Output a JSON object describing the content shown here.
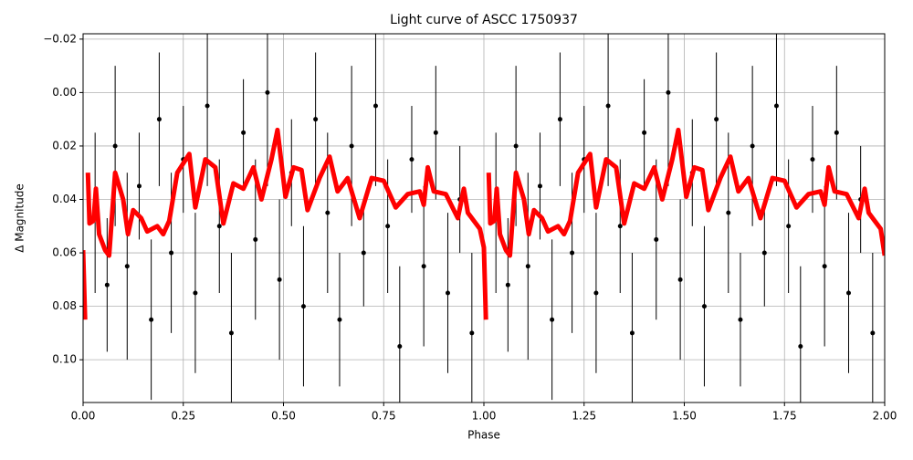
{
  "chart_data": {
    "type": "errorbar-line",
    "title": "Light curve of ASCC 1750937",
    "x_label": "Phase",
    "y_label": "Δ Magnitude",
    "xlim": [
      0,
      2
    ],
    "ylim": [
      0.116,
      -0.022
    ],
    "grid": true,
    "xticks": [
      {
        "value": 0,
        "label": "0.00"
      },
      {
        "value": 0.25,
        "label": "0.25"
      },
      {
        "value": 0.5,
        "label": "0.50"
      },
      {
        "value": 0.75,
        "label": "0.75"
      },
      {
        "value": 1,
        "label": "1.00"
      },
      {
        "value": 1.25,
        "label": "1.25"
      },
      {
        "value": 1.5,
        "label": "1.50"
      },
      {
        "value": 1.75,
        "label": "1.75"
      },
      {
        "value": 2,
        "label": "2.00"
      }
    ],
    "yticks": [
      {
        "value": -0.02,
        "label": "−0.02"
      },
      {
        "value": 0,
        "label": "0.00"
      },
      {
        "value": 0.02,
        "label": "0.02"
      },
      {
        "value": 0.04,
        "label": "0.04"
      },
      {
        "value": 0.06,
        "label": "0.06"
      },
      {
        "value": 0.08,
        "label": "0.08"
      },
      {
        "value": 0.1,
        "label": "0.10"
      }
    ],
    "points": {
      "color": "#000000",
      "x": [
        0.03,
        0.06,
        0.08,
        0.11,
        0.14,
        0.17,
        0.19,
        0.22,
        0.25,
        0.28,
        0.31,
        0.34,
        0.37,
        0.4,
        0.43,
        0.46,
        0.49,
        0.52,
        0.55,
        0.58,
        0.61,
        0.64,
        0.67,
        0.7,
        0.73,
        0.76,
        0.79,
        0.82,
        0.85,
        0.88,
        0.91,
        0.94,
        0.97,
        1.03,
        1.06,
        1.08,
        1.11,
        1.14,
        1.17,
        1.19,
        1.22,
        1.25,
        1.28,
        1.31,
        1.34,
        1.37,
        1.4,
        1.43,
        1.46,
        1.49,
        1.52,
        1.55,
        1.58,
        1.61,
        1.64,
        1.67,
        1.7,
        1.73,
        1.76,
        1.79,
        1.82,
        1.85,
        1.88,
        1.91,
        1.94,
        1.97
      ],
      "values": [
        0.045,
        0.072,
        0.02,
        0.065,
        0.035,
        0.085,
        0.01,
        0.06,
        0.025,
        0.075,
        0.005,
        0.05,
        0.09,
        0.015,
        0.055,
        0.0,
        0.07,
        0.03,
        0.08,
        0.01,
        0.045,
        0.085,
        0.02,
        0.06,
        0.005,
        0.05,
        0.095,
        0.025,
        0.065,
        0.015,
        0.075,
        0.04,
        0.09,
        0.045,
        0.072,
        0.02,
        0.065,
        0.035,
        0.085,
        0.01,
        0.06,
        0.025,
        0.075,
        0.005,
        0.05,
        0.09,
        0.015,
        0.055,
        0.0,
        0.07,
        0.03,
        0.08,
        0.01,
        0.045,
        0.085,
        0.02,
        0.06,
        0.005,
        0.05,
        0.095,
        0.025,
        0.065,
        0.015,
        0.075,
        0.04,
        0.09
      ],
      "errors": [
        0.03,
        0.025,
        0.03,
        0.035,
        0.02,
        0.03,
        0.025,
        0.03,
        0.02,
        0.03,
        0.03,
        0.025,
        0.03,
        0.02,
        0.03,
        0.035,
        0.03,
        0.02,
        0.03,
        0.025,
        0.03,
        0.025,
        0.03,
        0.02,
        0.03,
        0.025,
        0.03,
        0.02,
        0.03,
        0.025,
        0.03,
        0.02,
        0.03,
        0.03,
        0.025,
        0.03,
        0.035,
        0.02,
        0.03,
        0.025,
        0.03,
        0.02,
        0.03,
        0.03,
        0.025,
        0.03,
        0.02,
        0.03,
        0.035,
        0.03,
        0.02,
        0.03,
        0.025,
        0.03,
        0.025,
        0.03,
        0.02,
        0.03,
        0.025,
        0.03,
        0.02,
        0.03,
        0.025,
        0.03,
        0.02,
        0.03
      ]
    },
    "curve": {
      "color": "#ff0000",
      "x": [
        0.0,
        0.005,
        0.008,
        0.012,
        0.016,
        0.026,
        0.032,
        0.04,
        0.055,
        0.065,
        0.08,
        0.1,
        0.112,
        0.125,
        0.145,
        0.16,
        0.185,
        0.2,
        0.215,
        0.235,
        0.265,
        0.28,
        0.305,
        0.33,
        0.35,
        0.375,
        0.4,
        0.425,
        0.445,
        0.47,
        0.485,
        0.505,
        0.525,
        0.545,
        0.56,
        0.59,
        0.615,
        0.635,
        0.66,
        0.69,
        0.72,
        0.75,
        0.78,
        0.81,
        0.84,
        0.85,
        0.86,
        0.875,
        0.905,
        0.935,
        0.95,
        0.96,
        0.99,
        1.0,
        1.005,
        1.008,
        1.012,
        1.016,
        1.026,
        1.032,
        1.04,
        1.055,
        1.065,
        1.08,
        1.1,
        1.112,
        1.125,
        1.145,
        1.16,
        1.185,
        1.2,
        1.215,
        1.235,
        1.265,
        1.28,
        1.305,
        1.33,
        1.35,
        1.375,
        1.4,
        1.425,
        1.445,
        1.47,
        1.485,
        1.505,
        1.525,
        1.545,
        1.56,
        1.59,
        1.615,
        1.635,
        1.66,
        1.69,
        1.72,
        1.75,
        1.78,
        1.81,
        1.84,
        1.85,
        1.86,
        1.875,
        1.905,
        1.935,
        1.95,
        1.96,
        1.99,
        2.0
      ],
      "values": [
        0.059,
        0.085,
        null,
        0.03,
        0.049,
        0.048,
        0.036,
        0.053,
        0.059,
        0.061,
        0.03,
        0.04,
        0.053,
        0.044,
        0.047,
        0.052,
        0.05,
        0.053,
        0.048,
        0.03,
        0.023,
        0.043,
        0.025,
        0.028,
        0.049,
        0.034,
        0.036,
        0.028,
        0.04,
        0.025,
        0.014,
        0.039,
        0.028,
        0.029,
        0.044,
        0.032,
        0.024,
        0.037,
        0.032,
        0.047,
        0.032,
        0.033,
        0.043,
        0.038,
        0.037,
        0.042,
        0.028,
        0.037,
        0.038,
        0.047,
        0.036,
        0.045,
        0.051,
        0.058,
        0.085,
        null,
        0.03,
        0.049,
        0.048,
        0.036,
        0.053,
        0.059,
        0.061,
        0.03,
        0.04,
        0.053,
        0.044,
        0.047,
        0.052,
        0.05,
        0.053,
        0.048,
        0.03,
        0.023,
        0.043,
        0.025,
        0.028,
        0.049,
        0.034,
        0.036,
        0.028,
        0.04,
        0.025,
        0.014,
        0.039,
        0.028,
        0.029,
        0.044,
        0.032,
        0.024,
        0.037,
        0.032,
        0.047,
        0.032,
        0.033,
        0.043,
        0.038,
        0.037,
        0.042,
        0.028,
        0.037,
        0.038,
        0.047,
        0.036,
        0.045,
        0.051,
        0.061
      ]
    }
  }
}
